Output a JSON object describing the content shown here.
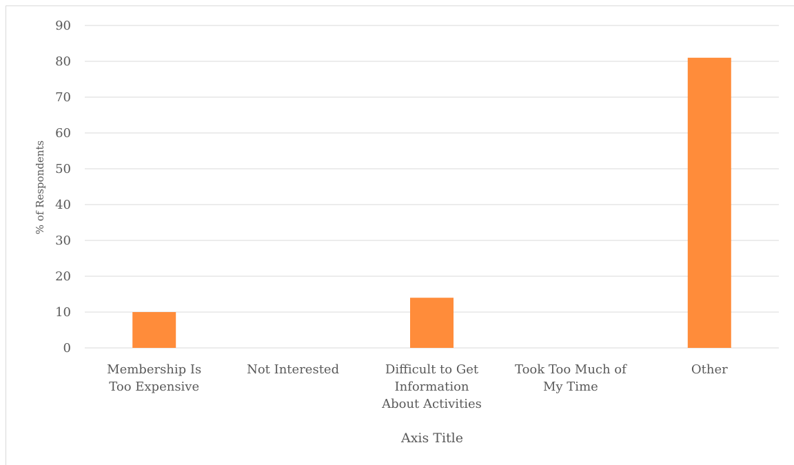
{
  "chart_data": {
    "type": "bar",
    "categories": [
      [
        "Membership Is",
        "Too Expensive"
      ],
      [
        "Not Interested"
      ],
      [
        "Difficult to Get",
        "Information",
        "About Activities"
      ],
      [
        "Took Too Much of",
        "My Time"
      ],
      [
        "Other"
      ]
    ],
    "values": [
      10,
      0,
      14,
      0,
      81
    ],
    "xlabel": "Axis Title",
    "ylabel": "% of Respondents",
    "ylim": [
      0,
      90
    ],
    "yticks": [
      0,
      10,
      20,
      30,
      40,
      50,
      60,
      70,
      80,
      90
    ],
    "grid": true,
    "legend": "none",
    "bar_color": "#ff8c3a",
    "grid_color": "#d9d9d9"
  }
}
